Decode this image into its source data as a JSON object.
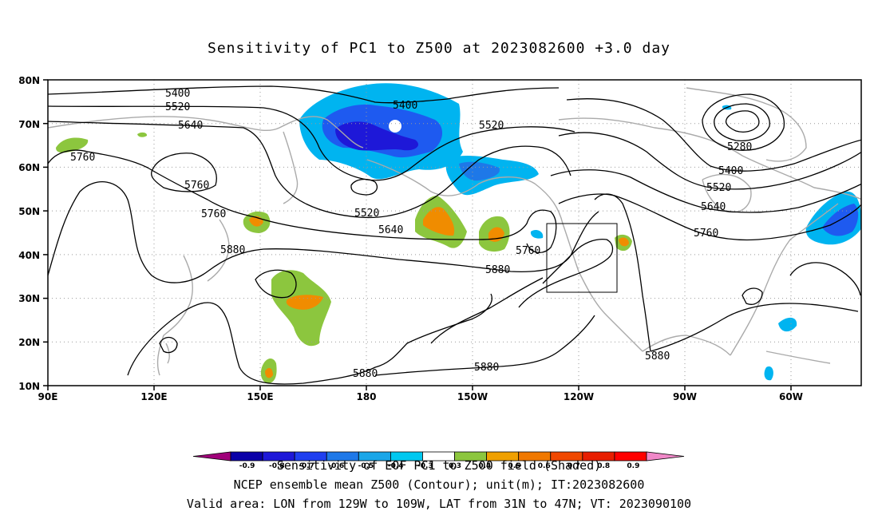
{
  "title": "Sensitivity of PC1 to Z500 at 2023082600 +3.0 day",
  "lat_labels": [
    "80N",
    "70N",
    "60N",
    "50N",
    "40N",
    "30N",
    "20N",
    "10N"
  ],
  "lon_labels": [
    "90E",
    "120E",
    "150E",
    "180",
    "150W",
    "120W",
    "90W",
    "60W"
  ],
  "contour_labels": {
    "c5400a": "5400",
    "c5520a": "5520",
    "c5640a": "5640",
    "c5760a": "5760",
    "c5760b": "5760",
    "c5760c": "5760",
    "c5880a": "5880",
    "c5400b": "5400",
    "c5520b": "5520",
    "c5640b": "5640",
    "c5520c": "5520",
    "c5760d": "5760",
    "c5880b": "5880",
    "c5280": "5280",
    "c5400c": "5400",
    "c5520d": "5520",
    "c5640c": "5640",
    "c5760e": "5760",
    "c5880c": "5880",
    "c5880d": "5880",
    "c5880e": "5880"
  },
  "colorbar": {
    "label": "Sensitivity of EOF PC1 to Z500 field (Shaded)",
    "values": [
      "-0.9",
      "-0.8",
      "-0.7",
      "-0.6",
      "-0.5",
      "-0.4",
      "-0.3",
      "0.3",
      "0.4",
      "0.5",
      "0.6",
      "0.7",
      "0.8",
      "0.9"
    ],
    "colors": [
      "#a0007a",
      "#0a00a8",
      "#1e18d8",
      "#1f3ff0",
      "#1e78e8",
      "#1aa6e8",
      "#00c8f0",
      "#ffffff",
      "#8cc63e",
      "#f0a000",
      "#f07800",
      "#f04800",
      "#e81e00",
      "#ff0000",
      "#f088c8"
    ]
  },
  "footer": {
    "line1": "NCEP ensemble mean Z500 (Contour); unit(m); IT:2023082600",
    "line2": "Valid area: LON from 129W to 109W, LAT from 31N to 47N; VT: 2023090100"
  },
  "colors": {
    "neg": "#1e5af0",
    "neg_dark": "#1e18d8",
    "neg_light": "#00b4f0",
    "pos": "#8cc63e",
    "pos_orange": "#f08c00",
    "coast": "#aaaaaa"
  }
}
